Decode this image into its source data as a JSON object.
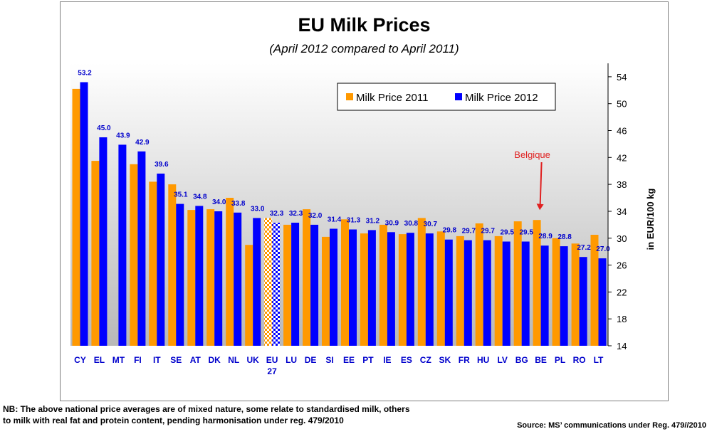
{
  "chart_data": {
    "type": "bar",
    "title": "EU Milk Prices",
    "subtitle": "(April 2012 compared to April 2011)",
    "ylabel": "in EUR/100 kg",
    "ylim": [
      14,
      56
    ],
    "yticks": [
      14,
      18,
      22,
      26,
      30,
      34,
      38,
      42,
      46,
      50,
      54
    ],
    "grid": false,
    "legend_position": "top-right",
    "categories": [
      {
        "line1": "CY",
        "line2": ""
      },
      {
        "line1": "EL",
        "line2": ""
      },
      {
        "line1": "MT",
        "line2": ""
      },
      {
        "line1": "FI",
        "line2": ""
      },
      {
        "line1": "IT",
        "line2": ""
      },
      {
        "line1": "SE",
        "line2": ""
      },
      {
        "line1": "AT",
        "line2": ""
      },
      {
        "line1": "DK",
        "line2": ""
      },
      {
        "line1": "NL",
        "line2": ""
      },
      {
        "line1": "UK",
        "line2": ""
      },
      {
        "line1": "EU",
        "line2": "27"
      },
      {
        "line1": "LU",
        "line2": ""
      },
      {
        "line1": "DE",
        "line2": ""
      },
      {
        "line1": "SI",
        "line2": ""
      },
      {
        "line1": "EE",
        "line2": ""
      },
      {
        "line1": "PT",
        "line2": ""
      },
      {
        "line1": "IE",
        "line2": ""
      },
      {
        "line1": "ES",
        "line2": ""
      },
      {
        "line1": "CZ",
        "line2": ""
      },
      {
        "line1": "SK",
        "line2": ""
      },
      {
        "line1": "FR",
        "line2": ""
      },
      {
        "line1": "HU",
        "line2": ""
      },
      {
        "line1": "LV",
        "line2": ""
      },
      {
        "line1": "BG",
        "line2": ""
      },
      {
        "line1": "BE",
        "line2": ""
      },
      {
        "line1": "PL",
        "line2": ""
      },
      {
        "line1": "RO",
        "line2": ""
      },
      {
        "line1": "LT",
        "line2": ""
      }
    ],
    "series": [
      {
        "name": "Milk Price 2011",
        "color": "#ff9900",
        "values": [
          52.2,
          41.5,
          null,
          41.0,
          38.4,
          38.0,
          34.2,
          34.3,
          36.0,
          29.0,
          33.0,
          32.0,
          34.3,
          30.2,
          32.8,
          30.7,
          32.0,
          30.6,
          33.0,
          31.0,
          30.3,
          32.2,
          30.3,
          32.5,
          32.7,
          30.0,
          29.2,
          30.5
        ]
      },
      {
        "name": "Milk Price 2012",
        "color": "#0000ff",
        "values": [
          53.2,
          45.0,
          43.9,
          42.9,
          39.6,
          35.1,
          34.8,
          34.0,
          33.8,
          33.0,
          32.3,
          32.3,
          32.0,
          31.4,
          31.3,
          31.2,
          30.9,
          30.8,
          30.7,
          29.8,
          29.7,
          29.7,
          29.5,
          29.5,
          28.9,
          28.8,
          27.2,
          27.0
        ],
        "labels": [
          "53.2",
          "45.0",
          "43.9",
          "42.9",
          "39.6",
          "35.1",
          "34.8",
          "34.0",
          "33.8",
          "33.0",
          "32.3",
          "32.3",
          "32.0",
          "31.4",
          "31.3",
          "31.2",
          "30.9",
          "30.8",
          "30.7",
          "29.8",
          "29.7",
          "29.7",
          "29.5",
          "29.5",
          "28.9",
          "28.8",
          "27.2",
          "27.0"
        ]
      }
    ],
    "highlight_category": "EU",
    "annotation": {
      "text": "Belgique",
      "target_category": "BE"
    }
  },
  "footer": {
    "note_line1": "NB: The above national price averages are of mixed nature, some relate to standardised milk, others",
    "note_line2": "to milk with real fat and protein content, pending harmonisation under reg. 479/2010",
    "source": "Source: MS’ communications under Reg. 479//2010"
  }
}
